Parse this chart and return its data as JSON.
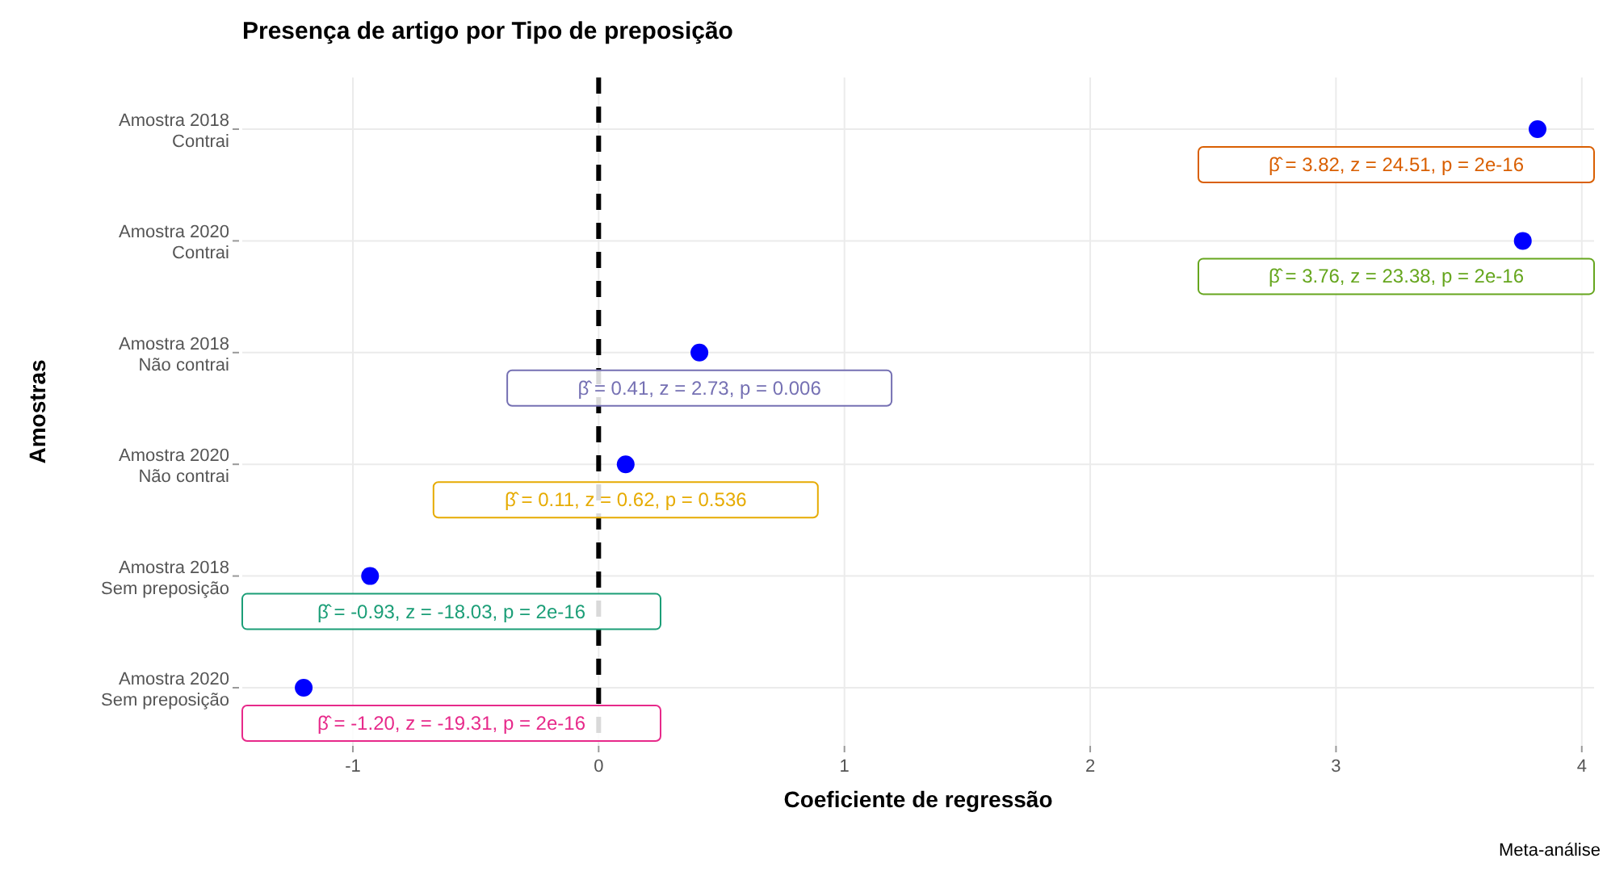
{
  "chart_data": {
    "type": "scatter",
    "title": "Presença de artigo por Tipo de preposição",
    "xlabel": "Coeficiente de regressão",
    "ylabel": "Amostras",
    "categories": [
      "Amostra 2018\nContrai",
      "Amostra 2020\nContrai",
      "Amostra 2018\nNão contrai",
      "Amostra 2020\nNão contrai",
      "Amostra 2018\nSem preposição",
      "Amostra 2020\nSem preposição"
    ],
    "orientation": "horizontal",
    "series": [
      {
        "color": "#0000ff",
        "values": [
          3.82,
          3.76,
          0.41,
          0.11,
          -0.93,
          -1.2
        ]
      }
    ],
    "xlim": [
      -1.45,
      4.05
    ],
    "xticks": [
      {
        "value": -1,
        "label": "-1"
      },
      0,
      1,
      2,
      3,
      4
    ],
    "grid": true,
    "marker": "circle",
    "ref_lines": [
      {
        "axis": "x",
        "value": 0,
        "color": "#000000",
        "line_style": "dashed"
      }
    ],
    "annotations": [
      {
        "text": "β̂ = 3.82,  z = 24.51,  p = 2e-16",
        "x": 3.82,
        "y": "Amostra 2018\nContrai"
      },
      {
        "text": "β̂ = 3.76,  z = 23.38,  p = 2e-16",
        "x": 3.76,
        "y": "Amostra 2020\nContrai"
      },
      {
        "text": "β̂ = 0.41,  z = 2.73,  p = 0.006",
        "x": 0.41,
        "y": "Amostra 2018\nNão contrai"
      },
      {
        "text": "β̂ = 0.11,  z = 0.62,  p = 0.536",
        "x": 0.11,
        "y": "Amostra 2020\nNão contrai"
      },
      {
        "text": "β̂ = -0.93,  z = -18.03,  p = 2e-16",
        "x": -0.93,
        "y": "Amostra 2018\nSem preposição"
      },
      {
        "text": "β̂ = -1.20,  z = -19.31,  p = 2e-16",
        "x": -1.2,
        "y": "Amostra 2020\nSem preposição"
      },
      "Meta-análise"
    ]
  }
}
